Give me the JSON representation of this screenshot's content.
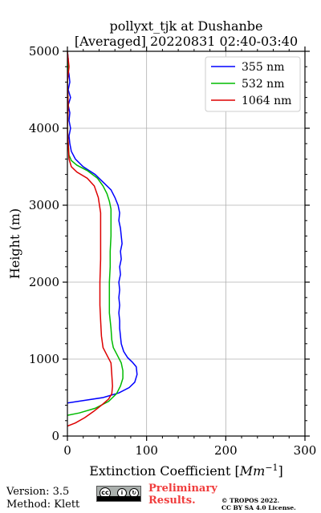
{
  "chart_data": {
    "type": "line",
    "title": "pollyxt_tjk at Dushanbe",
    "subtitle": "[Averaged] 20220831 02:40-03:40",
    "xlabel": "Extinction Coefficient [",
    "xlabel_unit": "Mm",
    "xlabel_exp": "−1",
    "xlabel_end": "]",
    "ylabel": "Height (m)",
    "xlim": [
      0,
      300
    ],
    "ylim": [
      0,
      5000
    ],
    "x_ticks": [
      "0",
      "100",
      "200",
      "300"
    ],
    "y_ticks": [
      "0",
      "1000",
      "2000",
      "3000",
      "4000",
      "5000"
    ],
    "grid": true,
    "legend_position": "top-right",
    "series": [
      {
        "name": "355 nm",
        "color": "#0000ff",
        "points": [
          [
            0,
            430
          ],
          [
            20,
            460
          ],
          [
            45,
            500
          ],
          [
            65,
            560
          ],
          [
            78,
            630
          ],
          [
            85,
            700
          ],
          [
            88,
            800
          ],
          [
            87,
            900
          ],
          [
            82,
            960
          ],
          [
            76,
            1020
          ],
          [
            71,
            1100
          ],
          [
            68,
            1200
          ],
          [
            67,
            1300
          ],
          [
            66,
            1400
          ],
          [
            66,
            1500
          ],
          [
            65,
            1600
          ],
          [
            66,
            1700
          ],
          [
            65,
            1800
          ],
          [
            66,
            1900
          ],
          [
            65,
            2000
          ],
          [
            67,
            2100
          ],
          [
            66,
            2200
          ],
          [
            68,
            2300
          ],
          [
            67,
            2400
          ],
          [
            69,
            2500
          ],
          [
            68,
            2600
          ],
          [
            67,
            2700
          ],
          [
            65,
            2800
          ],
          [
            66,
            2900
          ],
          [
            64,
            3000
          ],
          [
            60,
            3100
          ],
          [
            55,
            3200
          ],
          [
            45,
            3300
          ],
          [
            35,
            3400
          ],
          [
            20,
            3500
          ],
          [
            10,
            3600
          ],
          [
            5,
            3700
          ],
          [
            3,
            3800
          ],
          [
            2,
            3900
          ],
          [
            4,
            4000
          ],
          [
            2,
            4100
          ],
          [
            3,
            4200
          ],
          [
            1,
            4300
          ],
          [
            4,
            4400
          ],
          [
            1,
            4500
          ],
          [
            3,
            4600
          ],
          [
            2,
            4700
          ],
          [
            0,
            4800
          ],
          [
            1,
            4900
          ],
          [
            0,
            5000
          ]
        ]
      },
      {
        "name": "532 nm",
        "color": "#00bb00",
        "points": [
          [
            0,
            270
          ],
          [
            15,
            300
          ],
          [
            35,
            360
          ],
          [
            52,
            450
          ],
          [
            62,
            550
          ],
          [
            67,
            650
          ],
          [
            70,
            750
          ],
          [
            70,
            850
          ],
          [
            68,
            950
          ],
          [
            63,
            1050
          ],
          [
            58,
            1150
          ],
          [
            56,
            1250
          ],
          [
            55,
            1400
          ],
          [
            54,
            1500
          ],
          [
            53,
            1600
          ],
          [
            53,
            1800
          ],
          [
            53,
            2000
          ],
          [
            54,
            2200
          ],
          [
            54,
            2400
          ],
          [
            55,
            2600
          ],
          [
            55,
            2800
          ],
          [
            55,
            2950
          ],
          [
            53,
            3050
          ],
          [
            50,
            3150
          ],
          [
            45,
            3250
          ],
          [
            38,
            3350
          ],
          [
            25,
            3450
          ],
          [
            12,
            3520
          ],
          [
            5,
            3580
          ],
          [
            2,
            3650
          ],
          [
            1,
            3800
          ],
          [
            0,
            4000
          ],
          [
            1,
            4300
          ],
          [
            0,
            4600
          ],
          [
            1,
            4800
          ],
          [
            0,
            5000
          ]
        ]
      },
      {
        "name": "1064 nm",
        "color": "#dd0000",
        "points": [
          [
            0,
            130
          ],
          [
            10,
            170
          ],
          [
            22,
            240
          ],
          [
            33,
            320
          ],
          [
            43,
            400
          ],
          [
            52,
            480
          ],
          [
            56,
            550
          ],
          [
            57,
            650
          ],
          [
            56,
            800
          ],
          [
            55,
            950
          ],
          [
            50,
            1050
          ],
          [
            45,
            1150
          ],
          [
            43,
            1300
          ],
          [
            42,
            1500
          ],
          [
            41,
            1700
          ],
          [
            41,
            2000
          ],
          [
            42,
            2300
          ],
          [
            42,
            2600
          ],
          [
            42,
            2900
          ],
          [
            39,
            3100
          ],
          [
            34,
            3250
          ],
          [
            25,
            3350
          ],
          [
            12,
            3430
          ],
          [
            5,
            3500
          ],
          [
            2,
            3600
          ],
          [
            1,
            3800
          ],
          [
            0,
            4000
          ],
          [
            1,
            4300
          ],
          [
            0,
            4600
          ],
          [
            2,
            4800
          ],
          [
            0,
            5000
          ]
        ]
      }
    ]
  },
  "footer": {
    "version": "Version: 3.5",
    "method": "Method: Klett",
    "preliminary_line1": "Preliminary",
    "preliminary_line2": "Results.",
    "copyright_line1": "© TROPOS 2022.",
    "copyright_line2": "CC BY SA 4.0 License."
  }
}
